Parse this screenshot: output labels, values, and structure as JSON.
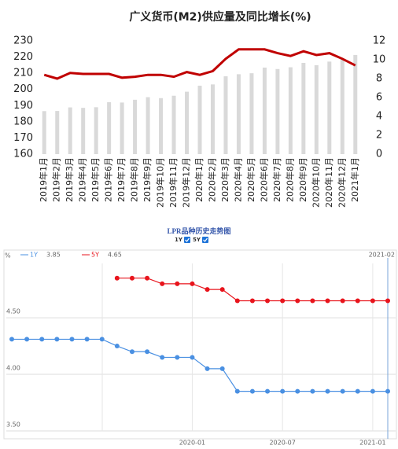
{
  "chart_data": [
    {
      "type": "bar",
      "title": "广义货币(M2)供应量及同比增长(%)",
      "categories": [
        "2019年1月",
        "2019年2月",
        "2019年3月",
        "2019年4月",
        "2019年5月",
        "2019年6月",
        "2019年7月",
        "2019年8月",
        "2019年9月",
        "2019年10月",
        "2019年11月",
        "2019年12月",
        "2020年1月",
        "2020年2月",
        "2020年3月",
        "2020年4月",
        "2020年5月",
        "2020年6月",
        "2020年7月",
        "2020年8月",
        "2020年9月",
        "2020年10月",
        "2020年11月",
        "2020年12月",
        "2021年1月"
      ],
      "series": [
        {
          "color": "#d9d9d9",
          "values": [
            186.6,
            186.7,
            188.9,
            188.6,
            189.0,
            192.1,
            191.9,
            193.6,
            195.2,
            194.6,
            196.1,
            198.6,
            202.3,
            203.1,
            208.1,
            209.4,
            210.0,
            213.5,
            212.6,
            213.7,
            216.4,
            215.0,
            217.2,
            218.7,
            221.3
          ]
        },
        {
          "type": "line",
          "axis": "y2",
          "color": "#c00000",
          "values": [
            8.4,
            8.0,
            8.6,
            8.5,
            8.5,
            8.5,
            8.1,
            8.2,
            8.4,
            8.4,
            8.2,
            8.7,
            8.4,
            8.8,
            10.1,
            11.1,
            11.1,
            11.1,
            10.7,
            10.4,
            10.9,
            10.5,
            10.7,
            10.1,
            9.4
          ]
        }
      ],
      "ylim": [
        160,
        230
      ],
      "yticks": [
        160,
        170,
        180,
        190,
        200,
        210,
        220,
        230
      ],
      "y2lim": [
        0,
        12
      ],
      "y2ticks": [
        0,
        2,
        4,
        6,
        8,
        10,
        12
      ]
    },
    {
      "type": "line",
      "title": "LPR品种历史走势图",
      "ylabel": "%",
      "annotation": "2021-02",
      "categories": [
        null,
        null,
        null,
        null,
        null,
        null,
        null,
        null,
        null,
        null,
        null,
        null,
        "2020-01",
        null,
        null,
        null,
        null,
        null,
        "2020-07",
        null,
        null,
        null,
        null,
        null,
        "2021-01",
        null
      ],
      "series": [
        {
          "name": "1Y",
          "latest": 3.85,
          "color": "#4a90e2",
          "values": [
            4.31,
            4.31,
            4.31,
            4.31,
            4.31,
            4.31,
            4.31,
            4.25,
            4.2,
            4.2,
            4.15,
            4.15,
            4.15,
            4.05,
            4.05,
            3.85,
            3.85,
            3.85,
            3.85,
            3.85,
            3.85,
            3.85,
            3.85,
            3.85,
            3.85,
            3.85
          ]
        },
        {
          "name": "5Y",
          "latest": 4.65,
          "color": "#e8141c",
          "values": [
            null,
            null,
            null,
            null,
            null,
            null,
            null,
            4.85,
            4.85,
            4.85,
            4.8,
            4.8,
            4.8,
            4.75,
            4.75,
            4.65,
            4.65,
            4.65,
            4.65,
            4.65,
            4.65,
            4.65,
            4.65,
            4.65,
            4.65,
            4.65
          ]
        }
      ],
      "ylim": [
        3.5,
        4.98
      ],
      "yticks": [
        {
          "value": 3.5,
          "label": "3.50"
        },
        {
          "value": 4,
          "label": "4.00"
        },
        {
          "value": 4.5,
          "label": "4.50"
        }
      ],
      "grid": true
    }
  ]
}
